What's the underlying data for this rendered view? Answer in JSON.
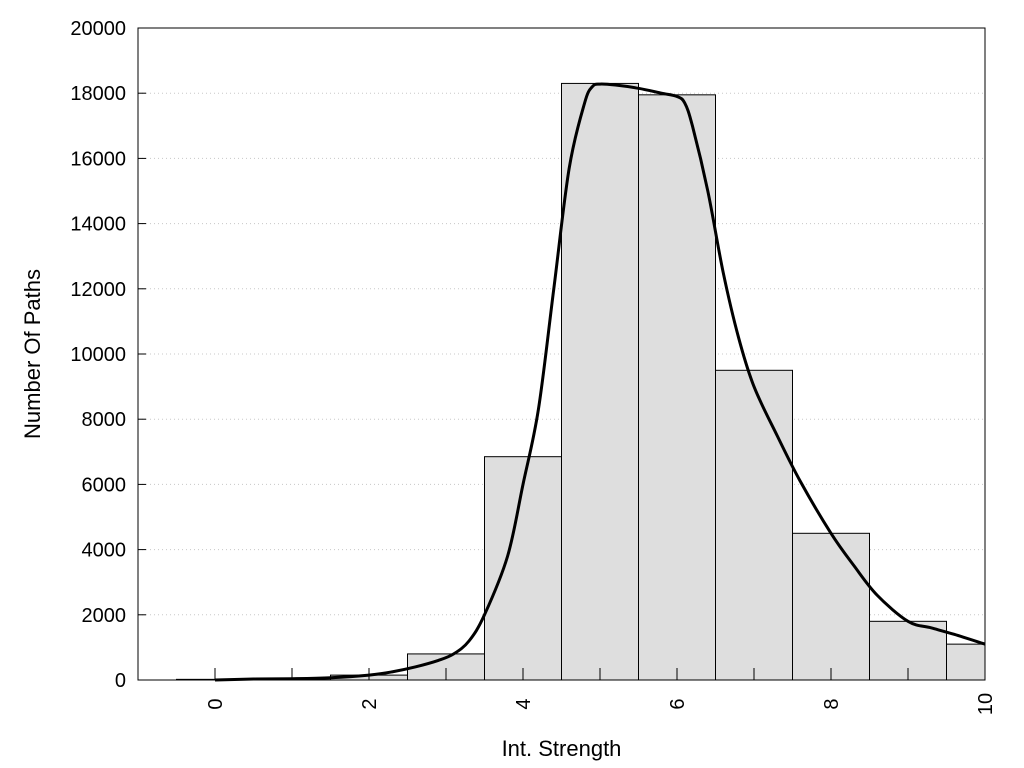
{
  "chart_data": {
    "type": "bar",
    "xlabel": "Int. Strength",
    "ylabel": "Number Of Paths",
    "xlim": [
      -1,
      10
    ],
    "ylim": [
      0,
      20000
    ],
    "grid": "horizontal-dotted",
    "bar_color": "#dedede",
    "line_color": "#000000",
    "x_ticks": [
      "0",
      "2",
      "4",
      "6",
      "8",
      "10"
    ],
    "y_ticks": [
      "0",
      "2000",
      "4000",
      "6000",
      "8000",
      "10000",
      "12000",
      "14000",
      "16000",
      "18000",
      "20000"
    ],
    "bins": [
      {
        "x": 0,
        "value": 20
      },
      {
        "x": 1,
        "value": 40
      },
      {
        "x": 2,
        "value": 150
      },
      {
        "x": 3,
        "value": 800
      },
      {
        "x": 4,
        "value": 6850
      },
      {
        "x": 5,
        "value": 18300
      },
      {
        "x": 6,
        "value": 17950
      },
      {
        "x": 7,
        "value": 9500
      },
      {
        "x": 8,
        "value": 4500
      },
      {
        "x": 9,
        "value": 1800
      },
      {
        "x": 10,
        "value": 1100
      }
    ],
    "bin_width": 1,
    "curve": {
      "x": [
        0,
        0.5,
        1,
        1.5,
        2,
        2.3,
        2.6,
        2.9,
        3.1,
        3.3,
        3.5,
        3.8,
        4.0,
        4.2,
        4.4,
        4.6,
        4.8,
        4.9,
        5.0,
        5.2,
        5.5,
        5.8,
        6.0,
        6.1,
        6.2,
        6.4,
        6.6,
        6.8,
        7.0,
        7.3,
        7.6,
        8.0,
        8.3,
        8.6,
        9.0,
        9.3,
        9.6,
        10.0
      ],
      "y": [
        0,
        30,
        40,
        70,
        150,
        250,
        400,
        600,
        800,
        1200,
        2000,
        3800,
        6000,
        8300,
        12000,
        15700,
        17700,
        18200,
        18280,
        18250,
        18150,
        18000,
        17900,
        17700,
        17000,
        15000,
        12500,
        10500,
        9000,
        7500,
        6100,
        4500,
        3500,
        2600,
        1800,
        1600,
        1400,
        1100
      ]
    }
  }
}
